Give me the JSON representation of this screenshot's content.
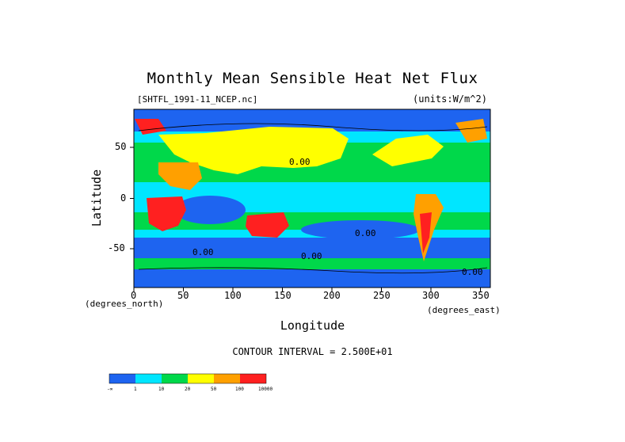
{
  "chart_data": {
    "type": "heatmap",
    "title": "Monthly Mean Sensible Heat Net Flux",
    "file_label": "[SHTFL_1991-11_NCEP.nc]",
    "units_label": "(units:W/m^2)",
    "xlabel": "Longitude",
    "ylabel": "Latitude",
    "x_units_label": "(degrees_north)",
    "y_units_label": "(degrees_east)",
    "xlim": [
      0,
      360
    ],
    "ylim": [
      -88,
      88
    ],
    "x_ticks": [
      "0",
      "50",
      "100",
      "150",
      "200",
      "250",
      "300",
      "350"
    ],
    "y_ticks": [
      "50",
      "0",
      "-50"
    ],
    "contour_interval": "CONTOUR INTERVAL = 2.500E+01",
    "contour_labels": [
      "0.00",
      "0.00",
      "0.00",
      "0.00",
      "0.00"
    ],
    "colorbar": {
      "levels": [
        "-∞",
        "1",
        "10",
        "20",
        "50",
        "100",
        "10000"
      ],
      "colors": [
        "#1e64f0",
        "#00e6ff",
        "#00d84a",
        "#ffff00",
        "#ffa000",
        "#ff2020"
      ]
    }
  }
}
